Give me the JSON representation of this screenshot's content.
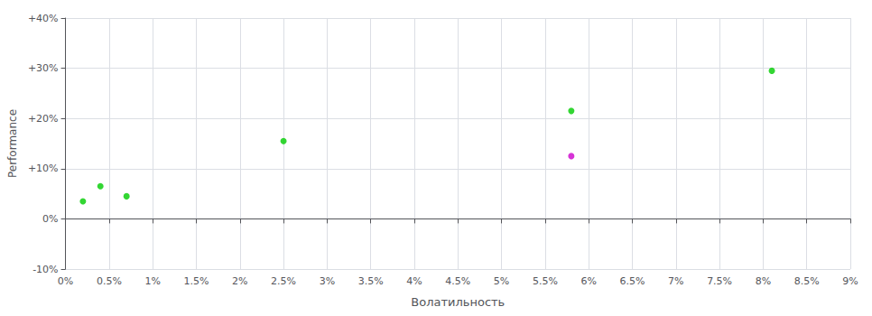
{
  "chart_data": {
    "type": "scatter",
    "xlabel": "Волатильность",
    "ylabel": "Performance",
    "xlim": [
      0.0,
      0.09
    ],
    "ylim": [
      -0.1,
      0.4
    ],
    "xticks": [
      {
        "value": 0.0,
        "label": "0%"
      },
      {
        "value": 0.005,
        "label": "0.5%"
      },
      {
        "value": 0.01,
        "label": "1%"
      },
      {
        "value": 0.015,
        "label": "1.5%"
      },
      {
        "value": 0.02,
        "label": "2%"
      },
      {
        "value": 0.025,
        "label": "2.5%"
      },
      {
        "value": 0.03,
        "label": "3%"
      },
      {
        "value": 0.035,
        "label": "3.5%"
      },
      {
        "value": 0.04,
        "label": "4%"
      },
      {
        "value": 0.045,
        "label": "4.5%"
      },
      {
        "value": 0.05,
        "label": "5%"
      },
      {
        "value": 0.055,
        "label": "5.5%"
      },
      {
        "value": 0.06,
        "label": "6%"
      },
      {
        "value": 0.065,
        "label": "6.5%"
      },
      {
        "value": 0.07,
        "label": "7%"
      },
      {
        "value": 0.075,
        "label": "7.5%"
      },
      {
        "value": 0.08,
        "label": "8%"
      },
      {
        "value": 0.085,
        "label": "8.5%"
      },
      {
        "value": 0.09,
        "label": "9%"
      }
    ],
    "yticks": [
      {
        "value": -0.1,
        "label": "-10%"
      },
      {
        "value": 0.0,
        "label": "0%"
      },
      {
        "value": 0.1,
        "label": "+10%"
      },
      {
        "value": 0.2,
        "label": "+20%"
      },
      {
        "value": 0.3,
        "label": "+30%"
      },
      {
        "value": 0.4,
        "label": "+40%"
      }
    ],
    "grid": true,
    "series": [
      {
        "color": "#00cc00",
        "x": [
          0.002,
          0.004,
          0.007,
          0.025,
          0.058,
          0.081
        ],
        "values": [
          0.035,
          0.065,
          0.045,
          0.155,
          0.215,
          0.295
        ]
      },
      {
        "color": "#cc00cc",
        "x": [
          0.058
        ],
        "values": [
          0.125
        ]
      }
    ]
  }
}
